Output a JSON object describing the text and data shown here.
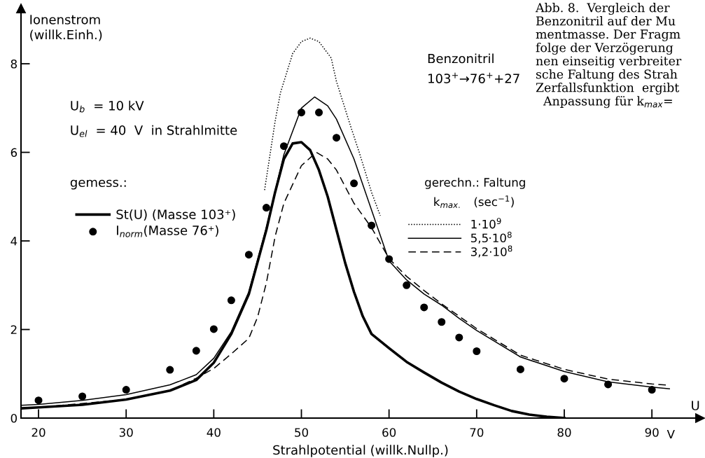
{
  "chart_data": {
    "type": "line",
    "xlabel": "Strahlpotential (willk.Nullp.)",
    "ylabel": "Ionenstrom\n(willk.Einh.)",
    "xlim": [
      18,
      95.5
    ],
    "ylim": [
      0,
      9.25
    ],
    "xticks": [
      20,
      30,
      40,
      50,
      60,
      70,
      80,
      90
    ],
    "yticks": [
      0,
      2,
      4,
      6,
      8
    ],
    "grid": false,
    "legend": "center",
    "series": [
      {
        "name": "St(U) (Masse 103⁺)",
        "color": "#000000",
        "line_style": "solid",
        "x": [
          18,
          20,
          25,
          30,
          35,
          38,
          40,
          42,
          44,
          46,
          47,
          48,
          49,
          50,
          51,
          52,
          53,
          54,
          55,
          56,
          57,
          58,
          60,
          62,
          64,
          66,
          68,
          70,
          72,
          74,
          76,
          78,
          80
        ],
        "values": [
          0.22,
          0.24,
          0.3,
          0.42,
          0.62,
          0.86,
          1.25,
          1.9,
          2.8,
          4.25,
          5.1,
          5.85,
          6.2,
          6.23,
          6.05,
          5.6,
          5.0,
          4.25,
          3.5,
          2.85,
          2.3,
          1.9,
          1.58,
          1.27,
          1.03,
          0.8,
          0.6,
          0.43,
          0.29,
          0.16,
          0.08,
          0.03,
          0.0
        ]
      },
      {
        "type": "scatter",
        "name": "I$_{norm}$(Masse 76⁺)",
        "color": "#000000",
        "marker": "circle",
        "x": [
          20,
          25,
          30,
          35,
          38,
          40,
          42,
          44,
          46,
          48,
          50,
          52,
          54,
          56,
          58,
          60,
          62,
          64,
          66,
          68,
          70,
          75,
          80,
          85,
          90
        ],
        "values": [
          0.4,
          0.49,
          0.64,
          1.09,
          1.52,
          2.01,
          2.66,
          3.69,
          4.75,
          6.14,
          6.9,
          6.9,
          6.33,
          5.3,
          4.35,
          3.59,
          3.0,
          2.5,
          2.17,
          1.82,
          1.51,
          1.1,
          0.89,
          0.76,
          0.64
        ]
      },
      {
        "name": "1·10$^{9}$",
        "color": "#000000",
        "line_style": "dotted",
        "x": [
          45.8,
          47,
          47.6,
          49,
          50,
          51,
          52,
          53.4,
          54,
          55.6,
          56.6,
          58,
          59
        ],
        "values": [
          5.15,
          6.7,
          7.34,
          8.23,
          8.5,
          8.58,
          8.5,
          8.13,
          7.6,
          6.6,
          6.0,
          5.1,
          4.57
        ]
      },
      {
        "name": "5,5·10$^{8}$",
        "color": "#000000",
        "line_style": "solid",
        "x": [
          18,
          20,
          25,
          30,
          35,
          38,
          40,
          42,
          44,
          46,
          48,
          50,
          51.5,
          53,
          54,
          56,
          58,
          60,
          62,
          64,
          66,
          68,
          70,
          75,
          80,
          85,
          90,
          92
        ],
        "values": [
          0.29,
          0.31,
          0.4,
          0.53,
          0.75,
          0.98,
          1.35,
          1.95,
          2.85,
          4.3,
          5.95,
          7.0,
          7.25,
          7.05,
          6.75,
          5.85,
          4.7,
          3.55,
          3.12,
          2.8,
          2.55,
          2.25,
          1.98,
          1.38,
          1.05,
          0.82,
          0.7,
          0.66
        ]
      },
      {
        "name": "3,2·10$^{8}$",
        "color": "#000000",
        "line_style": "dashed",
        "x": [
          18,
          20,
          30,
          35,
          38,
          40,
          42,
          44,
          45,
          46,
          47,
          48,
          50,
          51.7,
          53,
          54,
          56,
          58,
          60,
          62,
          64,
          66,
          70,
          75,
          80,
          85,
          90,
          92
        ],
        "values": [
          0.22,
          0.24,
          0.42,
          0.62,
          0.9,
          1.12,
          1.45,
          1.8,
          2.28,
          3.05,
          4.1,
          4.85,
          5.7,
          6.0,
          5.85,
          5.6,
          4.85,
          4.3,
          3.6,
          3.2,
          2.88,
          2.58,
          2.02,
          1.42,
          1.1,
          0.88,
          0.77,
          0.74
        ]
      }
    ],
    "annotations": [
      "U$_{b}$  = 10 kV",
      "U$_{el}$  = 40  V  in Strahlmitte",
      "gemess.:",
      "Benzonitril",
      "103$^{+}$→76$^{+}$+27",
      "gerechn.: Faltung",
      "k$_{max.}$   (sec$^{−1}$)",
      "U",
      "V",
      "Abb. 8.  Vergleich der\nBenzonitril auf der Mu\nmentmasse. Der Fragm\nfolge der Verzögerung\nnen einseitig verbreiter\nsche Faltung des Strah\nZerfallsfunktion  ergibt\n  Anpassung für k$_{max}$="
    ]
  }
}
